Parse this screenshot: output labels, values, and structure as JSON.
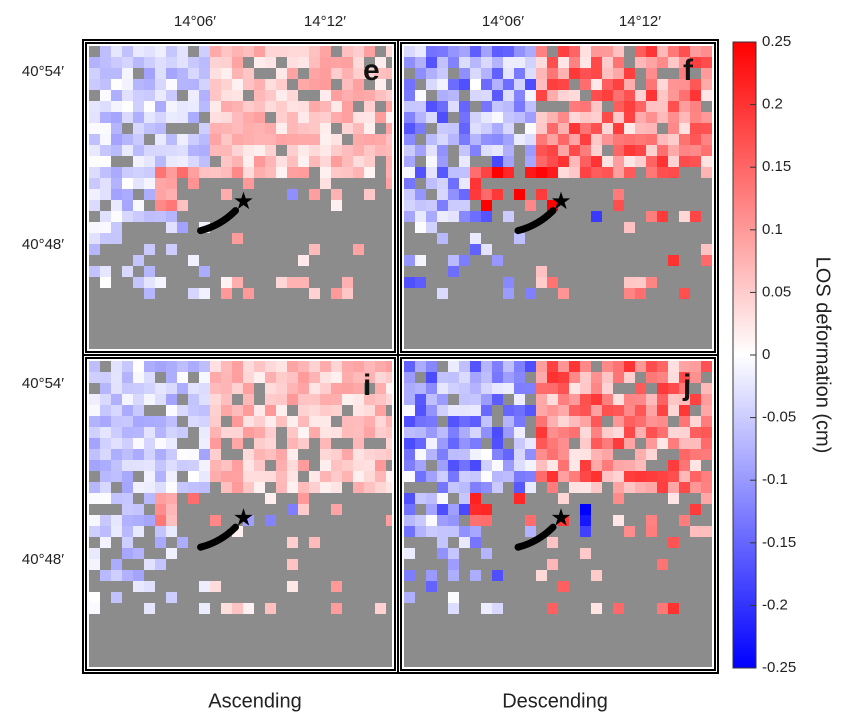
{
  "lon_labels": [
    "14°06′",
    "14°12′"
  ],
  "lat_labels": [
    "40°54′",
    "40°48′"
  ],
  "panels": [
    {
      "label": "e"
    },
    {
      "label": "f"
    },
    {
      "label": "i"
    },
    {
      "label": "j"
    }
  ],
  "column_titles": [
    "Ascending",
    "Descending"
  ],
  "colorbar": {
    "label": "LOS deformation  (cm)",
    "lim": [
      -0.25,
      0.25
    ],
    "ticks": [
      0.25,
      0.2,
      0.15,
      0.1,
      0.05,
      0,
      -0.05,
      -0.1,
      -0.15,
      -0.2,
      -0.25
    ],
    "colors": [
      "#0000ff",
      "#ffffff",
      "#ff0000"
    ]
  }
}
